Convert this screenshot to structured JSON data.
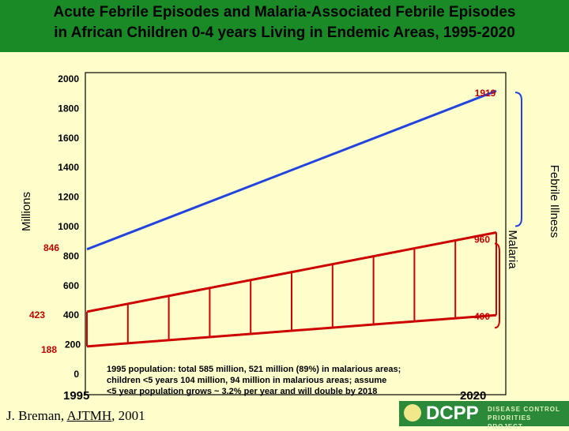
{
  "header": {
    "title_line1": "Acute Febrile Episodes and Malaria-Associated Febrile Episodes",
    "title_line2": "in African Children 0-4 years Living in Endemic Areas, 1995-2020"
  },
  "chart_data": {
    "type": "line",
    "title": "Acute Febrile Episodes and Malaria-Associated Febrile Episodes in African Children 0-4 years Living in Endemic Areas, 1995-2020",
    "xlabel": "",
    "ylabel": "Millions",
    "x": [
      "1995",
      "2020"
    ],
    "ylim": [
      0,
      2000
    ],
    "yticks": [
      "0",
      "200",
      "400",
      "600",
      "800",
      "1000",
      "1200",
      "1400",
      "1600",
      "1800",
      "2000"
    ],
    "series": [
      {
        "name": "Febrile Illness",
        "color": "#2244dd",
        "values": [
          846,
          1919
        ],
        "start_label": "846",
        "end_label": "1919"
      },
      {
        "name": "Malaria upper",
        "color": "#cc0000",
        "values": [
          423,
          960
        ],
        "start_label": "423",
        "end_label": "960"
      },
      {
        "name": "Malaria lower",
        "color": "#cc0000",
        "values": [
          188,
          400
        ],
        "start_label": "188",
        "end_label": "400"
      }
    ],
    "bracket_labels": {
      "febrile": "Febrile Illness",
      "malaria": "Malaria"
    },
    "hatch_count": 11,
    "x_start_label": "1995",
    "x_end_label": "2020"
  },
  "footnote": {
    "line1": "1995 population: total 585 million, 521 million (89%) in malarious areas;",
    "line2": "children <5 years 104 million, 94 million in malarious areas; assume",
    "line3": "<5 year population grows ~ 3.2% per year and will double by 2018"
  },
  "citation": {
    "prefix": "J. Breman, ",
    "journal": "AJTMH",
    "suffix": ", 2001"
  },
  "logo": {
    "name": "DCPP",
    "tagline_1": "DISEASE CONTROL",
    "tagline_2": "PRIORITIES PROJECT"
  }
}
